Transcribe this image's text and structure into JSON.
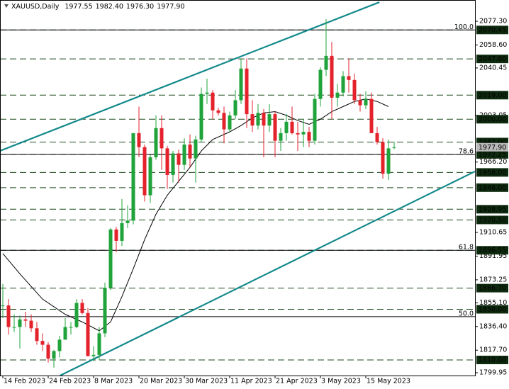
{
  "chart_data": {
    "type": "candlestick",
    "title": "XAUUSD,Daily",
    "title_values": [
      1977.55,
      1982.4,
      1976.3,
      1977.9
    ],
    "title_value_labels": [
      "1977.55",
      "1982.40",
      "1976.30",
      "1977.90"
    ],
    "up_color": "#1fa33a",
    "down_color": "#e3222c",
    "xlim": [
      -0.5,
      83.25
    ],
    "ylim": [
      1797.7,
      2094.1
    ],
    "x": [
      0,
      1,
      2,
      3,
      4,
      5,
      6,
      7,
      8,
      9,
      10,
      11,
      12,
      13,
      14,
      15,
      16,
      17,
      18,
      19,
      20,
      21,
      22,
      23,
      24,
      25,
      26,
      27,
      28,
      29,
      30,
      31,
      32,
      33,
      34,
      35,
      36,
      37,
      38,
      39,
      40,
      41,
      42,
      43,
      44,
      45,
      46,
      47,
      48,
      49,
      50,
      51,
      52,
      53,
      54,
      55,
      56,
      57,
      58,
      59,
      60,
      61,
      62,
      63,
      64,
      65,
      66,
      67,
      68,
      69
    ],
    "open": [
      1853,
      1853,
      1836,
      1836,
      1842,
      1841,
      1835,
      1825,
      1822,
      1811,
      1817,
      1826,
      1836,
      1836,
      1855,
      1847,
      1813,
      1814,
      1831,
      1867,
      1913,
      1904,
      1918,
      1920,
      1989,
      1978,
      1940,
      1970,
      1993,
      1977,
      1956,
      1973,
      1964,
      1980,
      1969,
      1984,
      2020,
      2021,
      2007,
      2005,
      1992,
      2003,
      2015,
      2040,
      2004,
      1995,
      2005,
      1995,
      2004,
      1983,
      1989,
      1998,
      1989,
      1988,
      1990,
      1983,
      2016,
      2039,
      2050,
      2017,
      2021,
      2034,
      2031,
      2015,
      2011,
      2016,
      1989,
      1982,
      1957,
      1977.55
    ],
    "high": [
      1870,
      1858,
      1846,
      1845,
      1848,
      1846,
      1840,
      1831,
      1824,
      1818,
      1829,
      1843,
      1840,
      1858,
      1858,
      1851,
      1821,
      1836,
      1871,
      1914,
      1915,
      1937,
      1932,
      1989,
      2010,
      1980,
      1972,
      2003,
      2003,
      1979,
      1975,
      1976,
      1985,
      1988,
      1987,
      2025,
      2032,
      2023,
      2009,
      2010,
      2006,
      2023,
      2048,
      2048,
      2015,
      2012,
      2008,
      2012,
      2006,
      1993,
      2004,
      2010,
      1998,
      2000,
      1994,
      2020,
      2041,
      2079,
      2061,
      2028,
      2038,
      2048,
      2036,
      2020,
      2022,
      2021,
      1994,
      1985,
      1984,
      1982.4
    ],
    "low": [
      1843,
      1830,
      1832,
      1819,
      1836,
      1832,
      1822,
      1817,
      1808,
      1804,
      1812,
      1826,
      1830,
      1835,
      1846,
      1813,
      1809,
      1810,
      1828,
      1865,
      1895,
      1900,
      1914,
      1917,
      1970,
      1935,
      1934,
      1968,
      1960,
      1945,
      1950,
      1950,
      1960,
      1962,
      1950,
      1982,
      2012,
      2000,
      2003,
      1981,
      1990,
      2000,
      2012,
      1993,
      1990,
      1992,
      1970,
      1990,
      1970,
      1975,
      1983,
      1988,
      1975,
      1978,
      1978,
      1980,
      2010,
      2034,
      2000,
      2010,
      2018,
      2021,
      2012,
      2006,
      2008,
      1990,
      1980,
      1953,
      1952,
      1976.3
    ],
    "close": [
      1853,
      1836,
      1836,
      1842,
      1841,
      1835,
      1825,
      1822,
      1811,
      1817,
      1826,
      1836,
      1836,
      1855,
      1847,
      1813,
      1814,
      1831,
      1867,
      1913,
      1904,
      1918,
      1920,
      1989,
      1978,
      1940,
      1970,
      1993,
      1977,
      1956,
      1973,
      1964,
      1980,
      1969,
      1984,
      2020,
      2021,
      2007,
      2005,
      1992,
      2003,
      2015,
      2040,
      2004,
      1995,
      2005,
      1995,
      2004,
      1983,
      1989,
      1998,
      1989,
      1988,
      1990,
      1983,
      2016,
      2039,
      2050,
      2017,
      2021,
      2034,
      2031,
      2015,
      2011,
      2016,
      1989,
      1982,
      1957,
      1977,
      1977.9
    ],
    "xticks": [
      {
        "value": 0,
        "label": "14 Feb 2023"
      },
      {
        "value": 8,
        "label": "24 Feb 2023"
      },
      {
        "value": 16,
        "label": "8 Mar 2023"
      },
      {
        "value": 24,
        "label": "20 Mar 2023"
      },
      {
        "value": 32,
        "label": "30 Mar 2023"
      },
      {
        "value": 40,
        "label": "11 Apr 2023"
      },
      {
        "value": 48,
        "label": "21 Apr 2023"
      },
      {
        "value": 56,
        "label": "3 May 2023"
      },
      {
        "value": 64,
        "label": "15 May 2023"
      }
    ],
    "yticks": [
      {
        "value": 2077.3,
        "label": "2077.30"
      },
      {
        "value": 2058.6,
        "label": "2058.60"
      },
      2040.45,
      2003.05,
      {
        "value": 1966.2,
        "label": "1966.20"
      },
      1910.65,
      1891.95,
      1873.25,
      {
        "value": 1855.1,
        "label": "1855.10"
      },
      {
        "value": 1836.4,
        "label": "1836.40"
      },
      {
        "value": 1817.7,
        "label": "1817.70"
      },
      1799.95
    ],
    "ma": {
      "color": "#000000",
      "x": [
        0,
        3,
        7,
        11,
        14,
        17,
        19,
        21,
        23,
        25,
        27,
        29,
        31,
        33,
        35,
        37,
        40,
        42,
        44,
        46,
        48,
        50,
        52,
        54,
        56,
        58,
        60,
        62,
        64,
        66,
        68
      ],
      "values": [
        1894,
        1878,
        1858,
        1846,
        1840,
        1833,
        1840,
        1860,
        1882,
        1905,
        1925,
        1940,
        1951,
        1962,
        1975,
        1984,
        1990,
        1995,
        2001,
        2005,
        2006,
        2003,
        1999,
        1996,
        2000,
        2006,
        2010,
        2014,
        2016,
        2014,
        2010
      ]
    },
    "trendlines": {
      "color": "#13898b",
      "lines": [
        {
          "x": [
            -0.5,
            66.4
          ],
          "values": [
            1975,
            2092.4
          ]
        },
        {
          "x": [
            10.1,
            83.25
          ],
          "values": [
            1797.7,
            1958.8
          ]
        }
      ]
    },
    "level_color": "#1d4a1d",
    "levels": [
      2070.45,
      {
        "value": 2047.6,
        "label": "2047.60"
      },
      {
        "value": 2019,
        "label": "2019.00"
      },
      {
        "value": 2000,
        "label": "2000.00"
      },
      {
        "value": 1982,
        "label": "1982.00"
      },
      1972.25,
      {
        "value": 1958,
        "label": "1958.00"
      },
      {
        "value": 1946,
        "label": "1946.00"
      },
      1928.95,
      {
        "value": 1920.5,
        "label": "1920.50"
      },
      1896.55,
      {
        "value": 1866.7,
        "label": "1866.70"
      },
      {
        "value": 1850,
        "label": "1850.00"
      },
      {
        "value": 1810,
        "label": "1810.00"
      }
    ],
    "fib_levels": [
      {
        "level": "100.0",
        "price": 2070.45
      },
      {
        "level": "78.6",
        "price": 1972.25
      },
      {
        "level": "61.8",
        "price": 1896.55
      },
      {
        "level": "50.0",
        "price": 1844.2
      }
    ],
    "current_price": {
      "value": 1977.9,
      "label": "1977.90"
    }
  }
}
